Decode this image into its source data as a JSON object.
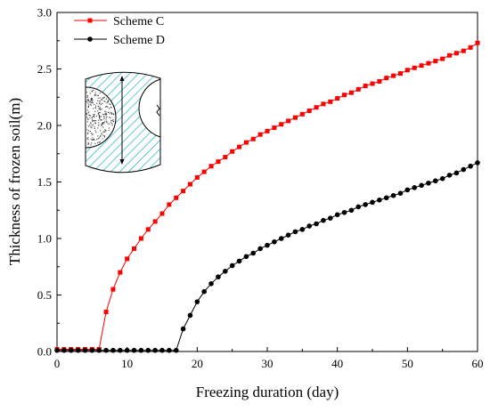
{
  "chart_data": {
    "type": "line",
    "xlabel": "Freezing duration (day)",
    "ylabel": "Thickness of frozen soil(m)",
    "xlim": [
      0,
      60
    ],
    "ylim": [
      0,
      3.0
    ],
    "xticks": [
      0,
      10,
      20,
      30,
      40,
      50,
      60
    ],
    "yticks": [
      0.0,
      0.5,
      1.0,
      1.5,
      2.0,
      2.5,
      3.0
    ],
    "xtick_labels": [
      "0",
      "10",
      "20",
      "30",
      "40",
      "50",
      "60"
    ],
    "ytick_labels": [
      "0.0",
      "0.5",
      "1.0",
      "1.5",
      "2.0",
      "2.5",
      "3.0"
    ],
    "grid": false,
    "legend_position": "top-left",
    "series": [
      {
        "name": "Scheme C",
        "color": "#ff0000",
        "marker": "square",
        "x": [
          0,
          1,
          2,
          3,
          4,
          5,
          6,
          7,
          8,
          9,
          10,
          11,
          12,
          13,
          14,
          15,
          16,
          17,
          18,
          19,
          20,
          21,
          22,
          23,
          24,
          25,
          26,
          27,
          28,
          29,
          30,
          31,
          32,
          33,
          34,
          35,
          36,
          37,
          38,
          39,
          40,
          41,
          42,
          43,
          44,
          45,
          46,
          47,
          48,
          49,
          50,
          51,
          52,
          53,
          54,
          55,
          56,
          57,
          58,
          59,
          60
        ],
        "y": [
          0.02,
          0.02,
          0.02,
          0.02,
          0.02,
          0.02,
          0.02,
          0.35,
          0.55,
          0.7,
          0.82,
          0.91,
          1.0,
          1.08,
          1.15,
          1.22,
          1.3,
          1.36,
          1.42,
          1.48,
          1.54,
          1.59,
          1.64,
          1.68,
          1.72,
          1.77,
          1.81,
          1.85,
          1.88,
          1.92,
          1.95,
          1.98,
          2.01,
          2.04,
          2.07,
          2.1,
          2.13,
          2.16,
          2.19,
          2.21,
          2.24,
          2.27,
          2.29,
          2.32,
          2.35,
          2.37,
          2.39,
          2.42,
          2.44,
          2.46,
          2.49,
          2.51,
          2.53,
          2.55,
          2.57,
          2.59,
          2.62,
          2.64,
          2.66,
          2.69,
          2.73
        ]
      },
      {
        "name": "Scheme D",
        "color": "#000000",
        "marker": "circle",
        "x": [
          0,
          1,
          2,
          3,
          4,
          5,
          6,
          7,
          8,
          9,
          10,
          11,
          12,
          13,
          14,
          15,
          16,
          17,
          18,
          19,
          20,
          21,
          22,
          23,
          24,
          25,
          26,
          27,
          28,
          29,
          30,
          31,
          32,
          33,
          34,
          35,
          36,
          37,
          38,
          39,
          40,
          41,
          42,
          43,
          44,
          45,
          46,
          47,
          48,
          49,
          50,
          51,
          52,
          53,
          54,
          55,
          56,
          57,
          58,
          59,
          60
        ],
        "y": [
          0.01,
          0.01,
          0.01,
          0.01,
          0.01,
          0.01,
          0.01,
          0.01,
          0.01,
          0.01,
          0.01,
          0.01,
          0.01,
          0.01,
          0.01,
          0.01,
          0.01,
          0.01,
          0.2,
          0.32,
          0.44,
          0.53,
          0.6,
          0.66,
          0.71,
          0.76,
          0.8,
          0.84,
          0.87,
          0.91,
          0.94,
          0.97,
          1.0,
          1.03,
          1.06,
          1.08,
          1.11,
          1.13,
          1.16,
          1.18,
          1.21,
          1.23,
          1.25,
          1.28,
          1.3,
          1.32,
          1.34,
          1.36,
          1.38,
          1.4,
          1.43,
          1.45,
          1.47,
          1.49,
          1.51,
          1.53,
          1.56,
          1.58,
          1.61,
          1.64,
          1.67
        ]
      }
    ]
  }
}
